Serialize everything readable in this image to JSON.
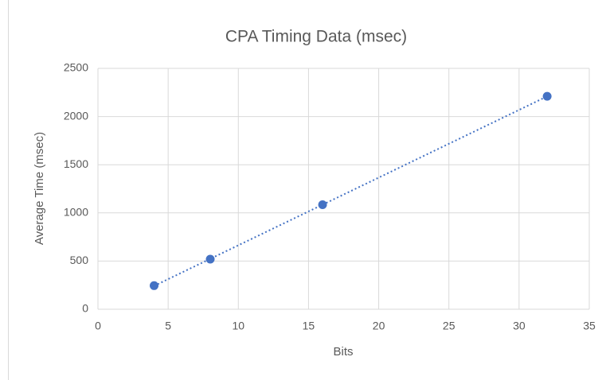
{
  "chart_data": {
    "type": "scatter",
    "title": "CPA Timing Data (msec)",
    "x_label": "Bits",
    "y_label": "Average Time (msec)",
    "x": [
      4,
      8,
      16,
      32
    ],
    "values": [
      245,
      520,
      1085,
      2210
    ],
    "color": "#4472c4",
    "trendline": "linear",
    "xlim": [
      0,
      35
    ],
    "xticks": [
      0,
      5,
      10,
      15,
      20,
      25,
      30,
      35
    ],
    "ylim": [
      0,
      2500
    ],
    "yticks": [
      0,
      500,
      1000,
      1500,
      2000,
      2500
    ],
    "grid": true
  }
}
